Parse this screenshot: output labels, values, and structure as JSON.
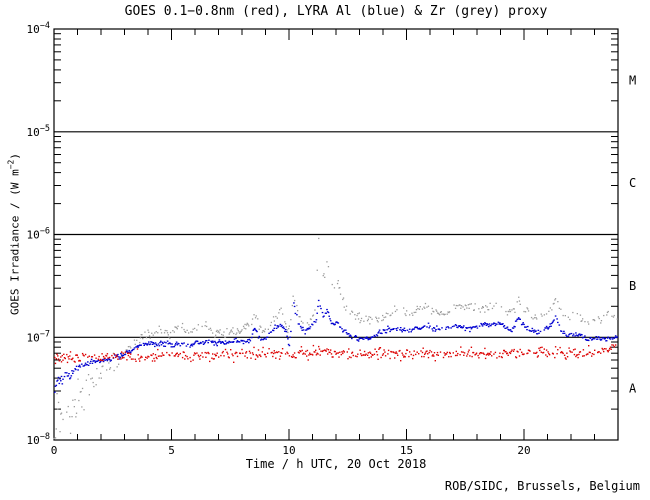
{
  "credit": "ROB/SIDC, Brussels, Belgium",
  "chart_data": {
    "type": "scatter",
    "title": "GOES 0.1−0.8nm (red), LYRA Al (blue) & Zr (grey) proxy",
    "xlabel": "Time / h UTC, 20 Oct 2018",
    "ylabel_parts": {
      "prefix": "GOES Irradiance / (W m",
      "sup": "−2",
      "suffix": ")"
    },
    "x_range_hours": [
      0,
      24
    ],
    "x_major_ticks": [
      0,
      5,
      10,
      15,
      20
    ],
    "x_minor_step_hours": 1,
    "y_scale": "log10",
    "y_range_exp": [
      -8,
      -4
    ],
    "y_tick_exponents": [
      -4,
      -5,
      -6,
      -7,
      -8
    ],
    "y_decade_lines_exp": [
      -5,
      -6,
      -7
    ],
    "grid": "horizontal-decade-lines",
    "flare_classes": [
      {
        "label": "M",
        "exp_mid": -4.5
      },
      {
        "label": "C",
        "exp_mid": -5.5
      },
      {
        "label": "B",
        "exp_mid": -6.5
      },
      {
        "label": "A",
        "exp_mid": -7.5
      }
    ],
    "series": [
      {
        "name": "LYRA Zr proxy",
        "color": "#9a9a9a",
        "scatter_dex": 0.022,
        "scatter_early": {
          "until_h": 3,
          "extra": 0.13
        },
        "gap": 0.45,
        "dot": [
          1.3,
          1.3
        ],
        "points_h_log10": [
          [
            0,
            -8.0
          ],
          [
            0.3,
            -7.85
          ],
          [
            0.7,
            -7.72
          ],
          [
            1.2,
            -7.55
          ],
          [
            1.7,
            -7.42
          ],
          [
            2.2,
            -7.32
          ],
          [
            2.7,
            -7.22
          ],
          [
            3.2,
            -7.1
          ],
          [
            3.7,
            -7.0
          ],
          [
            4.2,
            -6.96
          ],
          [
            4.6,
            -6.93
          ],
          [
            5.0,
            -6.97
          ],
          [
            5.3,
            -6.89
          ],
          [
            5.7,
            -6.97
          ],
          [
            6.1,
            -6.9
          ],
          [
            6.4,
            -6.88
          ],
          [
            6.8,
            -6.97
          ],
          [
            7.3,
            -6.96
          ],
          [
            7.8,
            -6.94
          ],
          [
            8.2,
            -6.89
          ],
          [
            8.55,
            -6.78
          ],
          [
            8.8,
            -6.92
          ],
          [
            9.1,
            -6.93
          ],
          [
            9.45,
            -6.8
          ],
          [
            9.7,
            -6.73
          ],
          [
            9.95,
            -6.96
          ],
          [
            10.1,
            -6.84
          ],
          [
            10.2,
            -6.56
          ],
          [
            10.4,
            -6.8
          ],
          [
            10.7,
            -6.88
          ],
          [
            10.95,
            -6.84
          ],
          [
            11.1,
            -6.74
          ],
          [
            11.2,
            -6.4
          ],
          [
            11.27,
            -5.96
          ],
          [
            11.42,
            -6.38
          ],
          [
            11.52,
            -6.42
          ],
          [
            11.62,
            -6.24
          ],
          [
            11.78,
            -6.48
          ],
          [
            11.93,
            -6.52
          ],
          [
            12.05,
            -6.44
          ],
          [
            12.2,
            -6.58
          ],
          [
            12.4,
            -6.7
          ],
          [
            12.7,
            -6.77
          ],
          [
            13.0,
            -6.8
          ],
          [
            13.3,
            -6.82
          ],
          [
            13.6,
            -6.85
          ],
          [
            13.9,
            -6.81
          ],
          [
            14.2,
            -6.77
          ],
          [
            14.5,
            -6.74
          ],
          [
            14.75,
            -6.71
          ],
          [
            15.0,
            -6.77
          ],
          [
            15.3,
            -6.74
          ],
          [
            15.6,
            -6.72
          ],
          [
            15.9,
            -6.7
          ],
          [
            16.2,
            -6.77
          ],
          [
            16.5,
            -6.77
          ],
          [
            16.8,
            -6.74
          ],
          [
            17.1,
            -6.72
          ],
          [
            17.4,
            -6.71
          ],
          [
            17.7,
            -6.69
          ],
          [
            18.0,
            -6.72
          ],
          [
            18.3,
            -6.73
          ],
          [
            18.6,
            -6.71
          ],
          [
            18.9,
            -6.67
          ],
          [
            19.2,
            -6.74
          ],
          [
            19.5,
            -6.77
          ],
          [
            19.75,
            -6.64
          ],
          [
            20.0,
            -6.72
          ],
          [
            20.3,
            -6.79
          ],
          [
            20.6,
            -6.81
          ],
          [
            20.9,
            -6.79
          ],
          [
            21.2,
            -6.73
          ],
          [
            21.35,
            -6.62
          ],
          [
            21.6,
            -6.77
          ],
          [
            21.85,
            -6.84
          ],
          [
            22.1,
            -6.75
          ],
          [
            22.35,
            -6.81
          ],
          [
            22.6,
            -6.84
          ],
          [
            22.85,
            -6.86
          ],
          [
            23.1,
            -6.83
          ],
          [
            23.4,
            -6.81
          ],
          [
            23.65,
            -6.75
          ],
          [
            23.85,
            -6.79
          ],
          [
            24,
            -6.81
          ]
        ]
      },
      {
        "name": "LYRA Al proxy",
        "color": "#0000d0",
        "scatter_dex": 0.012,
        "scatter_early": {
          "until_h": 1.5,
          "extra": 0.03
        },
        "gap": 0.18,
        "dot": [
          1.6,
          1.3
        ],
        "points_h_log10": [
          [
            0,
            -7.44
          ],
          [
            0.4,
            -7.4
          ],
          [
            0.8,
            -7.33
          ],
          [
            1.1,
            -7.28
          ],
          [
            1.5,
            -7.25
          ],
          [
            2.0,
            -7.23
          ],
          [
            2.4,
            -7.21
          ],
          [
            2.9,
            -7.18
          ],
          [
            3.3,
            -7.12
          ],
          [
            3.7,
            -7.07
          ],
          [
            4.1,
            -7.06
          ],
          [
            4.5,
            -7.07
          ],
          [
            4.8,
            -7.05
          ],
          [
            5.1,
            -7.09
          ],
          [
            5.4,
            -7.06
          ],
          [
            5.8,
            -7.08
          ],
          [
            6.2,
            -7.05
          ],
          [
            6.5,
            -7.04
          ],
          [
            6.9,
            -7.06
          ],
          [
            7.3,
            -7.05
          ],
          [
            7.7,
            -7.03
          ],
          [
            8.1,
            -7.05
          ],
          [
            8.4,
            -7.02
          ],
          [
            8.55,
            -6.9
          ],
          [
            8.75,
            -7.0
          ],
          [
            9.0,
            -7.02
          ],
          [
            9.3,
            -6.93
          ],
          [
            9.6,
            -6.88
          ],
          [
            9.85,
            -6.92
          ],
          [
            10.0,
            -7.08
          ],
          [
            10.12,
            -6.9
          ],
          [
            10.2,
            -6.66
          ],
          [
            10.4,
            -6.88
          ],
          [
            10.7,
            -6.95
          ],
          [
            10.95,
            -6.91
          ],
          [
            11.15,
            -6.84
          ],
          [
            11.27,
            -6.63
          ],
          [
            11.45,
            -6.8
          ],
          [
            11.62,
            -6.74
          ],
          [
            11.82,
            -6.87
          ],
          [
            12.05,
            -6.84
          ],
          [
            12.3,
            -6.94
          ],
          [
            12.6,
            -6.99
          ],
          [
            12.9,
            -7.01
          ],
          [
            13.2,
            -7.02
          ],
          [
            13.5,
            -7.01
          ],
          [
            13.8,
            -6.96
          ],
          [
            14.1,
            -6.93
          ],
          [
            14.4,
            -6.92
          ],
          [
            14.7,
            -6.92
          ],
          [
            15.0,
            -6.94
          ],
          [
            15.3,
            -6.92
          ],
          [
            15.6,
            -6.91
          ],
          [
            15.9,
            -6.89
          ],
          [
            16.2,
            -6.92
          ],
          [
            16.5,
            -6.92
          ],
          [
            16.8,
            -6.91
          ],
          [
            17.1,
            -6.9
          ],
          [
            17.4,
            -6.91
          ],
          [
            17.7,
            -6.92
          ],
          [
            18.0,
            -6.89
          ],
          [
            18.3,
            -6.86
          ],
          [
            18.6,
            -6.89
          ],
          [
            18.9,
            -6.85
          ],
          [
            19.2,
            -6.91
          ],
          [
            19.5,
            -6.94
          ],
          [
            19.75,
            -6.8
          ],
          [
            20.0,
            -6.89
          ],
          [
            20.3,
            -6.94
          ],
          [
            20.6,
            -6.95
          ],
          [
            20.9,
            -6.92
          ],
          [
            21.2,
            -6.87
          ],
          [
            21.35,
            -6.79
          ],
          [
            21.6,
            -6.94
          ],
          [
            21.9,
            -6.98
          ],
          [
            22.2,
            -6.97
          ],
          [
            22.5,
            -6.99
          ],
          [
            22.75,
            -7.03
          ],
          [
            23.0,
            -7.02
          ],
          [
            23.3,
            -7.01
          ],
          [
            23.6,
            -7.01
          ],
          [
            23.85,
            -7.0
          ],
          [
            24,
            -7.0
          ]
        ]
      },
      {
        "name": "GOES 0.1-0.8nm",
        "color": "#dd0000",
        "scatter_dex": 0.026,
        "gap": 0.25,
        "dot": [
          1.4,
          1.4
        ],
        "points_h_log10": [
          [
            0,
            -7.2
          ],
          [
            0.5,
            -7.21
          ],
          [
            1.0,
            -7.19
          ],
          [
            2.0,
            -7.19
          ],
          [
            3.0,
            -7.18
          ],
          [
            4.0,
            -7.18
          ],
          [
            5.0,
            -7.18
          ],
          [
            6.0,
            -7.18
          ],
          [
            7.0,
            -7.17
          ],
          [
            8.0,
            -7.17
          ],
          [
            9.0,
            -7.17
          ],
          [
            9.9,
            -7.16
          ],
          [
            10.5,
            -7.16
          ],
          [
            11.0,
            -7.16
          ],
          [
            11.4,
            -7.12
          ],
          [
            12.0,
            -7.15
          ],
          [
            13.0,
            -7.17
          ],
          [
            14.0,
            -7.15
          ],
          [
            15.0,
            -7.16
          ],
          [
            16.0,
            -7.16
          ],
          [
            17.0,
            -7.17
          ],
          [
            18.0,
            -7.16
          ],
          [
            19.0,
            -7.17
          ],
          [
            20.0,
            -7.16
          ],
          [
            20.8,
            -7.13
          ],
          [
            21.5,
            -7.15
          ],
          [
            22.5,
            -7.16
          ],
          [
            23.2,
            -7.14
          ],
          [
            23.7,
            -7.11
          ],
          [
            24,
            -7.1
          ]
        ]
      }
    ]
  }
}
